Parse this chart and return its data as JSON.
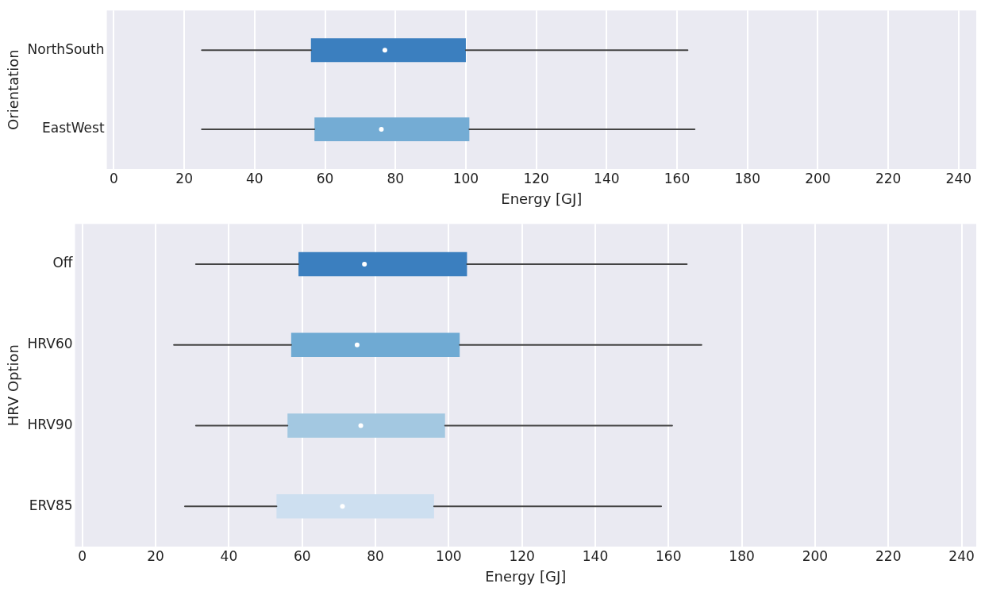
{
  "chart_data": [
    {
      "type": "box",
      "orientation": "horizontal",
      "ylabel": "Orientation",
      "xlabel": "Energy [GJ]",
      "categories": [
        "NorthSouth",
        "EastWest"
      ],
      "colors": [
        "#3b7fbf",
        "#74acd4"
      ],
      "boxes": [
        {
          "low": 25,
          "q1": 56,
          "median": 77,
          "q3": 100,
          "high": 163
        },
        {
          "low": 25,
          "q1": 57,
          "median": 76,
          "q3": 101,
          "high": 165
        }
      ],
      "xlim": [
        -2,
        245
      ],
      "xticks": [
        0,
        20,
        40,
        60,
        80,
        100,
        120,
        140,
        160,
        180,
        200,
        220,
        240
      ],
      "grid": "x"
    },
    {
      "type": "box",
      "orientation": "horizontal",
      "ylabel": "HRV Option",
      "xlabel": "Energy [GJ]",
      "categories": [
        "Off",
        "HRV60",
        "HRV90",
        "ERV85"
      ],
      "colors": [
        "#3b7fbf",
        "#6faad3",
        "#a3c8e1",
        "#cddff0"
      ],
      "boxes": [
        {
          "low": 31,
          "q1": 59,
          "median": 77,
          "q3": 105,
          "high": 165
        },
        {
          "low": 25,
          "q1": 57,
          "median": 75,
          "q3": 103,
          "high": 169
        },
        {
          "low": 31,
          "q1": 56,
          "median": 76,
          "q3": 99,
          "high": 161
        },
        {
          "low": 28,
          "q1": 53,
          "median": 71,
          "q3": 96,
          "high": 158
        }
      ],
      "xlim": [
        -2,
        244
      ],
      "xticks": [
        0,
        20,
        40,
        60,
        80,
        100,
        120,
        140,
        160,
        180,
        200,
        220,
        240
      ],
      "grid": "x"
    }
  ]
}
